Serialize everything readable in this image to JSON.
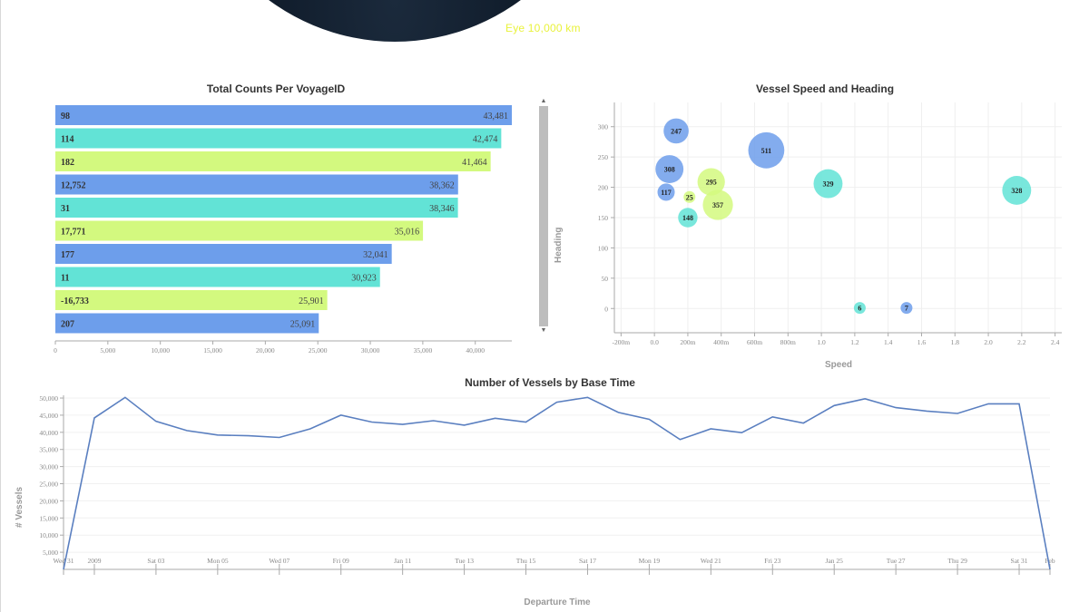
{
  "globe": {
    "eye_label": "Eye  10,000 km"
  },
  "colors": {
    "blue": "#6d9eeb",
    "teal": "#62e3d6",
    "lime": "#d3f97f",
    "line": "#5a7fc0"
  },
  "chart_data": [
    {
      "type": "bar",
      "orientation": "horizontal",
      "title": "Total Counts Per VoyageID",
      "categories": [
        "98",
        "114",
        "182",
        "12,752",
        "31",
        "17,771",
        "177",
        "11",
        "-16,733",
        "207"
      ],
      "values": [
        43481,
        42474,
        41464,
        38362,
        38346,
        35016,
        32041,
        30923,
        25901,
        25091
      ],
      "value_labels": [
        "43,481",
        "42,474",
        "41,464",
        "38,362",
        "38,346",
        "35,016",
        "32,041",
        "30,923",
        "25,901",
        "25,091"
      ],
      "xlim": [
        0,
        43481
      ],
      "xticks": [
        "0",
        "5,000",
        "10,000",
        "15,000",
        "20,000",
        "25,000",
        "30,000",
        "35,000",
        "40,000"
      ],
      "xtick_values": [
        0,
        5000,
        10000,
        15000,
        20000,
        25000,
        30000,
        35000,
        40000
      ],
      "bar_colors": [
        "blue",
        "teal",
        "lime",
        "blue",
        "teal",
        "lime",
        "blue",
        "teal",
        "lime",
        "blue"
      ],
      "scrollbar": "right"
    },
    {
      "type": "scatter",
      "subtype": "bubble",
      "title": "Vessel Speed and Heading",
      "xlabel": "Speed",
      "ylabel": "Heading",
      "xlim": [
        -0.24,
        2.44
      ],
      "ylim": [
        -40,
        340
      ],
      "xticks": [
        "-200m",
        "0.0",
        "200m",
        "400m",
        "600m",
        "800m",
        "1.0",
        "1.2",
        "1.4",
        "1.6",
        "1.8",
        "2.0",
        "2.2",
        "2.4"
      ],
      "xtick_values": [
        -0.2,
        0,
        0.2,
        0.4,
        0.6,
        0.8,
        1.0,
        1.2,
        1.4,
        1.6,
        1.8,
        2.0,
        2.2,
        2.4
      ],
      "yticks": [
        "0",
        "50",
        "100",
        "150",
        "200",
        "250",
        "300"
      ],
      "ytick_values": [
        0,
        50,
        100,
        150,
        200,
        250,
        300
      ],
      "points": [
        {
          "label": "247",
          "x": 0.13,
          "y": 293,
          "size": 247,
          "color": "blue"
        },
        {
          "label": "511",
          "x": 0.67,
          "y": 261,
          "size": 511,
          "color": "blue"
        },
        {
          "label": "308",
          "x": 0.09,
          "y": 230,
          "size": 308,
          "color": "blue"
        },
        {
          "label": "295",
          "x": 0.34,
          "y": 209,
          "size": 295,
          "color": "lime"
        },
        {
          "label": "329",
          "x": 1.04,
          "y": 206,
          "size": 329,
          "color": "teal"
        },
        {
          "label": "328",
          "x": 2.17,
          "y": 195,
          "size": 328,
          "color": "teal"
        },
        {
          "label": "117",
          "x": 0.07,
          "y": 192,
          "size": 117,
          "color": "blue"
        },
        {
          "label": "25",
          "x": 0.21,
          "y": 184,
          "size": 25,
          "color": "lime"
        },
        {
          "label": "357",
          "x": 0.38,
          "y": 171,
          "size": 357,
          "color": "lime"
        },
        {
          "label": "148",
          "x": 0.2,
          "y": 150,
          "size": 148,
          "color": "teal"
        },
        {
          "label": "6",
          "x": 1.23,
          "y": 1,
          "size": 6,
          "color": "teal"
        },
        {
          "label": "7",
          "x": 1.51,
          "y": 1,
          "size": 7,
          "color": "blue"
        }
      ]
    },
    {
      "type": "line",
      "title": "Number of Vessels by Base Time",
      "xlabel": "Departure Time",
      "ylabel": "# Vessels",
      "ylim": [
        0,
        50800
      ],
      "yticks": [
        "5,000",
        "10,000",
        "15,000",
        "20,000",
        "25,000",
        "30,000",
        "35,000",
        "40,000",
        "45,000",
        "50,000"
      ],
      "ytick_values": [
        5000,
        10000,
        15000,
        20000,
        25000,
        30000,
        35000,
        40000,
        45000,
        50000
      ],
      "x": [
        "2008-12-31",
        "2009-01-01",
        "2009-01-02",
        "2009-01-03",
        "2009-01-04",
        "2009-01-05",
        "2009-01-06",
        "2009-01-07",
        "2009-01-08",
        "2009-01-09",
        "2009-01-10",
        "2009-01-11",
        "2009-01-12",
        "2009-01-13",
        "2009-01-14",
        "2009-01-15",
        "2009-01-16",
        "2009-01-17",
        "2009-01-18",
        "2009-01-19",
        "2009-01-20",
        "2009-01-21",
        "2009-01-22",
        "2009-01-23",
        "2009-01-24",
        "2009-01-25",
        "2009-01-26",
        "2009-01-27",
        "2009-01-28",
        "2009-01-29",
        "2009-01-30",
        "2009-01-31",
        "2009-02-01"
      ],
      "y": [
        0,
        44200,
        50200,
        43200,
        40500,
        39200,
        39000,
        38500,
        41000,
        45000,
        43000,
        42300,
        43400,
        42100,
        44100,
        43000,
        48800,
        50200,
        45800,
        43800,
        37900,
        41000,
        39900,
        44500,
        42700,
        47800,
        49800,
        47200,
        46200,
        45500,
        48300,
        48300,
        0
      ],
      "xticks": [
        {
          "label": "Wed 31",
          "date": "2008-12-31"
        },
        {
          "label": "2009",
          "date": "2009-01-01"
        },
        {
          "label": "Sat 03",
          "date": "2009-01-03"
        },
        {
          "label": "Mon 05",
          "date": "2009-01-05"
        },
        {
          "label": "Wed 07",
          "date": "2009-01-07"
        },
        {
          "label": "Fri 09",
          "date": "2009-01-09"
        },
        {
          "label": "Jan 11",
          "date": "2009-01-11"
        },
        {
          "label": "Tue 13",
          "date": "2009-01-13"
        },
        {
          "label": "Thu 15",
          "date": "2009-01-15"
        },
        {
          "label": "Sat 17",
          "date": "2009-01-17"
        },
        {
          "label": "Mon 19",
          "date": "2009-01-19"
        },
        {
          "label": "Wed 21",
          "date": "2009-01-21"
        },
        {
          "label": "Fri 23",
          "date": "2009-01-23"
        },
        {
          "label": "Jan 25",
          "date": "2009-01-25"
        },
        {
          "label": "Tue 27",
          "date": "2009-01-27"
        },
        {
          "label": "Thu 29",
          "date": "2009-01-29"
        },
        {
          "label": "Sat 31",
          "date": "2009-01-31"
        },
        {
          "label": "Feb",
          "date": "2009-02-01"
        }
      ]
    }
  ]
}
